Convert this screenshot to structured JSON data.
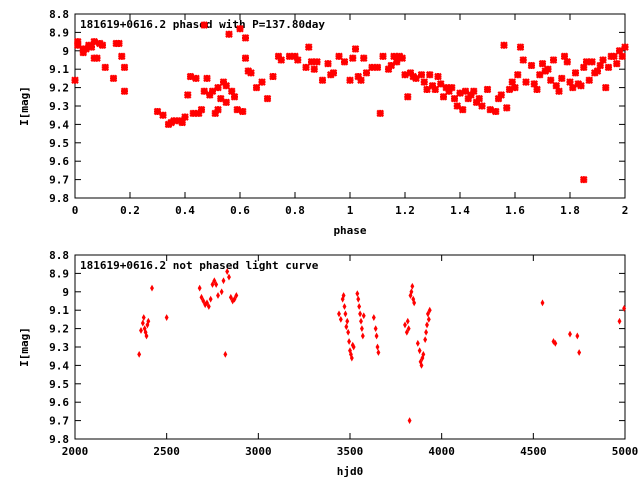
{
  "chart_data": [
    {
      "type": "scatter",
      "title": "181619+0616.2 phased with P=137.80day",
      "xlabel": "phase",
      "ylabel": "I[mag]",
      "xlim": [
        0,
        2
      ],
      "ylim": [
        9.8,
        8.8
      ],
      "y_inverted": true,
      "xticks": [
        "0",
        "0.2",
        "0.4",
        "0.6",
        "0.8",
        "1",
        "1.2",
        "1.4",
        "1.6",
        "1.8",
        "2"
      ],
      "yticks": [
        "8.8",
        "8.9",
        "9",
        "9.1",
        "9.2",
        "9.3",
        "9.4",
        "9.5",
        "9.6",
        "9.7",
        "9.8"
      ],
      "marker": "star",
      "color": "#ff0000",
      "points": [
        [
          0.0,
          9.16
        ],
        [
          0.01,
          8.95
        ],
        [
          0.01,
          8.97
        ],
        [
          0.03,
          9.01
        ],
        [
          0.03,
          8.99
        ],
        [
          0.04,
          8.99
        ],
        [
          0.05,
          8.97
        ],
        [
          0.06,
          8.98
        ],
        [
          0.07,
          9.04
        ],
        [
          0.07,
          8.95
        ],
        [
          0.08,
          9.04
        ],
        [
          0.09,
          8.96
        ],
        [
          0.1,
          8.97
        ],
        [
          0.11,
          9.09
        ],
        [
          0.14,
          9.15
        ],
        [
          0.15,
          8.96
        ],
        [
          0.16,
          8.96
        ],
        [
          0.17,
          9.03
        ],
        [
          0.18,
          9.22
        ],
        [
          0.18,
          9.09
        ],
        [
          0.3,
          9.33
        ],
        [
          0.32,
          9.35
        ],
        [
          0.34,
          9.4
        ],
        [
          0.35,
          9.39
        ],
        [
          0.36,
          9.38
        ],
        [
          0.38,
          9.38
        ],
        [
          0.39,
          9.39
        ],
        [
          0.4,
          9.36
        ],
        [
          0.41,
          9.24
        ],
        [
          0.42,
          9.14
        ],
        [
          0.43,
          9.34
        ],
        [
          0.44,
          9.15
        ],
        [
          0.45,
          9.34
        ],
        [
          0.46,
          9.32
        ],
        [
          0.47,
          9.22
        ],
        [
          0.47,
          8.86
        ],
        [
          0.48,
          9.15
        ],
        [
          0.49,
          9.24
        ],
        [
          0.5,
          9.22
        ],
        [
          0.51,
          9.34
        ],
        [
          0.52,
          9.32
        ],
        [
          0.52,
          9.2
        ],
        [
          0.53,
          9.26
        ],
        [
          0.54,
          9.17
        ],
        [
          0.55,
          9.28
        ],
        [
          0.55,
          9.19
        ],
        [
          0.56,
          8.91
        ],
        [
          0.57,
          9.22
        ],
        [
          0.58,
          9.25
        ],
        [
          0.59,
          9.32
        ],
        [
          0.6,
          8.88
        ],
        [
          0.61,
          9.33
        ],
        [
          0.62,
          9.04
        ],
        [
          0.62,
          8.93
        ],
        [
          0.63,
          9.11
        ],
        [
          0.64,
          9.12
        ],
        [
          0.66,
          9.2
        ],
        [
          0.68,
          9.17
        ],
        [
          0.7,
          9.26
        ],
        [
          0.72,
          9.14
        ],
        [
          0.74,
          9.03
        ],
        [
          0.75,
          9.05
        ],
        [
          0.78,
          9.03
        ],
        [
          0.8,
          9.03
        ],
        [
          0.81,
          9.05
        ],
        [
          0.84,
          9.09
        ],
        [
          0.85,
          8.98
        ],
        [
          0.86,
          9.06
        ],
        [
          0.87,
          9.1
        ],
        [
          0.88,
          9.06
        ],
        [
          0.9,
          9.16
        ],
        [
          0.92,
          9.07
        ],
        [
          0.93,
          9.13
        ],
        [
          0.94,
          9.12
        ],
        [
          0.96,
          9.03
        ],
        [
          0.98,
          9.06
        ],
        [
          1.0,
          9.16
        ],
        [
          1.01,
          9.04
        ],
        [
          1.02,
          8.99
        ],
        [
          1.03,
          9.14
        ],
        [
          1.04,
          9.16
        ],
        [
          1.05,
          9.04
        ],
        [
          1.06,
          9.12
        ],
        [
          1.08,
          9.09
        ],
        [
          1.1,
          9.09
        ],
        [
          1.11,
          9.34
        ],
        [
          1.12,
          9.03
        ],
        [
          1.14,
          9.1
        ],
        [
          1.15,
          9.08
        ],
        [
          1.16,
          9.03
        ],
        [
          1.17,
          9.06
        ],
        [
          1.18,
          9.03
        ],
        [
          1.19,
          9.04
        ],
        [
          1.2,
          9.13
        ],
        [
          1.21,
          9.25
        ],
        [
          1.22,
          9.12
        ],
        [
          1.23,
          9.14
        ],
        [
          1.24,
          9.15
        ],
        [
          1.26,
          9.13
        ],
        [
          1.27,
          9.17
        ],
        [
          1.28,
          9.21
        ],
        [
          1.29,
          9.13
        ],
        [
          1.3,
          9.19
        ],
        [
          1.31,
          9.21
        ],
        [
          1.32,
          9.14
        ],
        [
          1.33,
          9.18
        ],
        [
          1.34,
          9.25
        ],
        [
          1.35,
          9.2
        ],
        [
          1.36,
          9.22
        ],
        [
          1.37,
          9.2
        ],
        [
          1.38,
          9.26
        ],
        [
          1.39,
          9.3
        ],
        [
          1.4,
          9.23
        ],
        [
          1.41,
          9.32
        ],
        [
          1.42,
          9.22
        ],
        [
          1.43,
          9.26
        ],
        [
          1.44,
          9.24
        ],
        [
          1.45,
          9.22
        ],
        [
          1.46,
          9.28
        ],
        [
          1.47,
          9.26
        ],
        [
          1.48,
          9.3
        ],
        [
          1.5,
          9.21
        ],
        [
          1.51,
          9.32
        ],
        [
          1.53,
          9.33
        ],
        [
          1.54,
          9.26
        ],
        [
          1.55,
          9.24
        ],
        [
          1.56,
          8.97
        ],
        [
          1.57,
          9.31
        ],
        [
          1.58,
          9.21
        ],
        [
          1.59,
          9.17
        ],
        [
          1.6,
          9.2
        ],
        [
          1.61,
          9.13
        ],
        [
          1.62,
          8.98
        ],
        [
          1.63,
          9.05
        ],
        [
          1.64,
          9.17
        ],
        [
          1.66,
          9.08
        ],
        [
          1.67,
          9.18
        ],
        [
          1.68,
          9.21
        ],
        [
          1.69,
          9.13
        ],
        [
          1.7,
          9.07
        ],
        [
          1.71,
          9.11
        ],
        [
          1.72,
          9.1
        ],
        [
          1.73,
          9.16
        ],
        [
          1.74,
          9.05
        ],
        [
          1.75,
          9.19
        ],
        [
          1.76,
          9.22
        ],
        [
          1.77,
          9.15
        ],
        [
          1.78,
          9.03
        ],
        [
          1.79,
          9.06
        ],
        [
          1.8,
          9.17
        ],
        [
          1.81,
          9.2
        ],
        [
          1.82,
          9.12
        ],
        [
          1.83,
          9.18
        ],
        [
          1.84,
          9.19
        ],
        [
          1.85,
          9.7
        ],
        [
          1.85,
          9.09
        ],
        [
          1.86,
          9.06
        ],
        [
          1.87,
          9.16
        ],
        [
          1.88,
          9.06
        ],
        [
          1.89,
          9.12
        ],
        [
          1.9,
          9.11
        ],
        [
          1.91,
          9.08
        ],
        [
          1.92,
          9.05
        ],
        [
          1.93,
          9.2
        ],
        [
          1.94,
          9.09
        ],
        [
          1.95,
          9.03
        ],
        [
          1.96,
          9.03
        ],
        [
          1.97,
          9.07
        ],
        [
          1.98,
          9.0
        ],
        [
          1.99,
          9.03
        ],
        [
          2.0,
          8.98
        ]
      ]
    },
    {
      "type": "scatter",
      "title": "181619+0616.2 not phased light curve",
      "xlabel": "hjd0",
      "ylabel": "I[mag]",
      "xlim": [
        2000,
        5000
      ],
      "ylim": [
        9.8,
        8.8
      ],
      "y_inverted": true,
      "xticks": [
        "2000",
        "2500",
        "3000",
        "3500",
        "4000",
        "4500",
        "5000"
      ],
      "yticks": [
        "8.8",
        "8.9",
        "9",
        "9.1",
        "9.2",
        "9.3",
        "9.4",
        "9.5",
        "9.6",
        "9.7",
        "9.8"
      ],
      "marker": "diamond",
      "color": "#ff0000",
      "points": [
        [
          2350,
          9.34
        ],
        [
          2360,
          9.21
        ],
        [
          2370,
          9.17
        ],
        [
          2375,
          9.14
        ],
        [
          2380,
          9.2
        ],
        [
          2385,
          9.22
        ],
        [
          2390,
          9.24
        ],
        [
          2395,
          9.18
        ],
        [
          2400,
          9.16
        ],
        [
          2420,
          8.98
        ],
        [
          2500,
          9.14
        ],
        [
          2680,
          8.98
        ],
        [
          2690,
          9.03
        ],
        [
          2700,
          9.05
        ],
        [
          2710,
          9.07
        ],
        [
          2720,
          9.06
        ],
        [
          2730,
          9.08
        ],
        [
          2740,
          9.04
        ],
        [
          2750,
          8.96
        ],
        [
          2760,
          8.94
        ],
        [
          2770,
          8.96
        ],
        [
          2780,
          9.02
        ],
        [
          2800,
          9.0
        ],
        [
          2810,
          8.94
        ],
        [
          2820,
          9.34
        ],
        [
          2830,
          8.89
        ],
        [
          2840,
          8.92
        ],
        [
          2850,
          9.03
        ],
        [
          2860,
          9.05
        ],
        [
          2870,
          9.04
        ],
        [
          2880,
          9.02
        ],
        [
          3440,
          9.12
        ],
        [
          3450,
          9.15
        ],
        [
          3460,
          9.04
        ],
        [
          3465,
          9.02
        ],
        [
          3470,
          9.08
        ],
        [
          3475,
          9.12
        ],
        [
          3480,
          9.19
        ],
        [
          3485,
          9.16
        ],
        [
          3490,
          9.22
        ],
        [
          3495,
          9.27
        ],
        [
          3500,
          9.32
        ],
        [
          3505,
          9.34
        ],
        [
          3510,
          9.36
        ],
        [
          3515,
          9.29
        ],
        [
          3520,
          9.3
        ],
        [
          3540,
          9.01
        ],
        [
          3545,
          9.04
        ],
        [
          3550,
          9.08
        ],
        [
          3555,
          9.12
        ],
        [
          3560,
          9.16
        ],
        [
          3565,
          9.2
        ],
        [
          3570,
          9.24
        ],
        [
          3575,
          9.13
        ],
        [
          3630,
          9.14
        ],
        [
          3640,
          9.2
        ],
        [
          3645,
          9.24
        ],
        [
          3650,
          9.3
        ],
        [
          3655,
          9.33
        ],
        [
          3800,
          9.18
        ],
        [
          3810,
          9.22
        ],
        [
          3815,
          9.16
        ],
        [
          3820,
          9.2
        ],
        [
          3825,
          9.7
        ],
        [
          3830,
          9.02
        ],
        [
          3835,
          9.0
        ],
        [
          3840,
          8.97
        ],
        [
          3845,
          9.04
        ],
        [
          3850,
          9.06
        ],
        [
          3870,
          9.28
        ],
        [
          3880,
          9.32
        ],
        [
          3885,
          9.38
        ],
        [
          3890,
          9.4
        ],
        [
          3895,
          9.36
        ],
        [
          3900,
          9.34
        ],
        [
          3910,
          9.26
        ],
        [
          3915,
          9.22
        ],
        [
          3920,
          9.18
        ],
        [
          3925,
          9.12
        ],
        [
          3930,
          9.15
        ],
        [
          3935,
          9.1
        ],
        [
          4550,
          9.06
        ],
        [
          4610,
          9.27
        ],
        [
          4620,
          9.28
        ],
        [
          4700,
          9.23
        ],
        [
          4740,
          9.24
        ],
        [
          4750,
          9.33
        ],
        [
          4970,
          9.16
        ],
        [
          4995,
          9.09
        ]
      ]
    }
  ]
}
